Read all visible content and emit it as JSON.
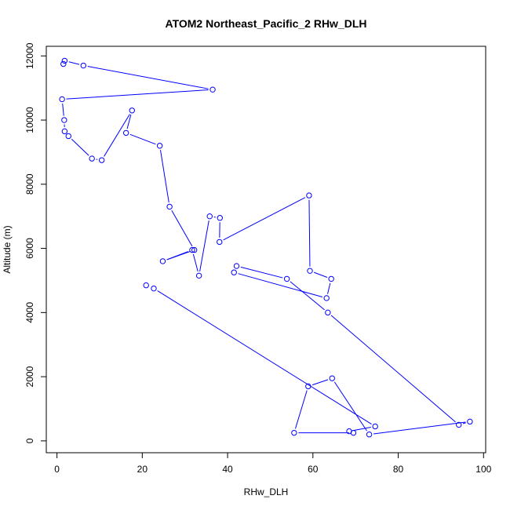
{
  "chart_data": {
    "type": "line",
    "title": "ATOM2 Northeast_Pacific_2 RHw_DLH",
    "xlabel": "RHw_DLH",
    "ylabel": "Altitude (m)",
    "xlim": [
      -2.5,
      100.5
    ],
    "ylim": [
      -370,
      12300
    ],
    "xticks": [
      0,
      20,
      40,
      60,
      80,
      100
    ],
    "xtick_labels": [
      "0",
      "20",
      "40",
      "60",
      "80",
      "100"
    ],
    "yticks": [
      0,
      2000,
      4000,
      6000,
      8000,
      10000,
      12000
    ],
    "ytick_labels": [
      "0",
      "2000",
      "4000",
      "6000",
      "8000",
      "10000",
      "12000"
    ],
    "grid": false,
    "legend": "none",
    "color": "#0000ff",
    "series": [
      {
        "x": [
          1.5,
          1.8,
          6.2,
          36.5,
          1.2,
          1.7,
          1.8,
          2.7,
          8.2,
          10.5,
          17.6,
          16.2,
          24.1,
          26.4,
          32.2,
          24.8,
          31.7,
          33.3,
          35.8,
          38.2,
          38.1,
          59.1,
          59.3,
          64.3,
          63.2,
          41.5,
          42.1,
          53.9,
          63.5,
          94.2,
          96.8,
          73.2,
          64.5,
          58.9,
          55.6,
          69.5,
          68.5,
          74.6,
          22.7,
          20.9
        ],
        "y": [
          11750,
          11850,
          11700,
          10950,
          10650,
          10000,
          9650,
          9500,
          8800,
          8750,
          10300,
          9600,
          9200,
          7300,
          5950,
          5600,
          5950,
          5150,
          7000,
          6950,
          6200,
          7650,
          5300,
          5050,
          4450,
          5250,
          5450,
          5050,
          4000,
          500,
          600,
          200,
          1950,
          1700,
          250,
          250,
          300,
          450,
          4750,
          4850
        ]
      }
    ]
  }
}
